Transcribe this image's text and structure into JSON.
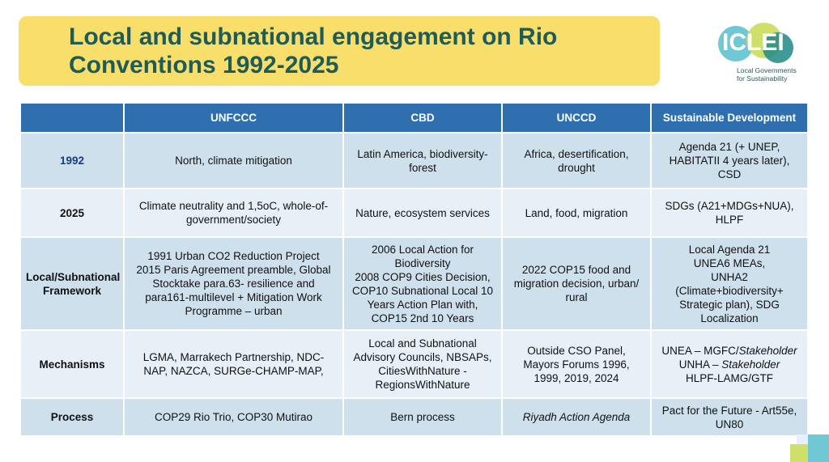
{
  "title": {
    "line1": "Local and subnational engagement on Rio",
    "line2": "Conventions 1992-2025"
  },
  "logo": {
    "word": "ICLEI",
    "sub_line1": "Local Governments",
    "sub_line2": "for Sustainability",
    "colors": {
      "teal": "#1e8a86",
      "aqua": "#6fc8d4",
      "lime": "#cfe06a"
    }
  },
  "colors": {
    "title_bg": "#f8de6b",
    "title_text": "#1f5c58",
    "header_bg": "#2f6fb0",
    "row_dark": "#cfe0ed",
    "row_light": "#e7f0f7"
  },
  "table": {
    "headers": [
      "",
      "UNFCCC",
      "CBD",
      "UNCCD",
      "Sustainable Development"
    ],
    "rows": [
      {
        "label": "1992",
        "cells": [
          [
            "North, climate mitigation"
          ],
          [
            "Latin America, biodiversity-",
            "forest"
          ],
          [
            "Africa, desertification,",
            "drought"
          ],
          [
            "Agenda 21 (+ UNEP,",
            "HABITATII 4 years later), CSD"
          ]
        ]
      },
      {
        "label": "2025",
        "cells": [
          [
            "Climate neutrality and 1,5oC, whole-of-",
            "government/society"
          ],
          [
            "Nature, ecosystem services"
          ],
          [
            "Land, food, migration"
          ],
          [
            "SDGs (A21+MDGs+NUA),",
            "HLPF"
          ]
        ]
      },
      {
        "label_line1": "Local/Subnational",
        "label_line2": "Framework",
        "cells": [
          [
            "1991 Urban CO2 Reduction Project",
            "2015 Paris Agreement preamble, Global",
            "Stocktake para.63- resilience and",
            "para161-multilevel + Mitigation Work",
            "Programme – urban"
          ],
          [
            "2006 Local Action for",
            "Biodiversity",
            "2008 COP9 Cities Decision,",
            "COP10 Subnational Local 10",
            "Years Action Plan with,",
            "COP15 2nd 10 Years"
          ],
          [
            "2022 COP15 food and",
            "migration decision, urban/",
            "rural"
          ],
          [
            "Local Agenda 21",
            "UNEA6 MEAs,",
            "UNHA2",
            "(Climate+biodiversity+",
            "Strategic plan), SDG",
            "Localization"
          ]
        ]
      },
      {
        "label": "Mechanisms",
        "cells": [
          [
            "LGMA, Marrakech Partnership, NDC-",
            "NAP, NAZCA, SURGe-CHAMP-MAP,"
          ],
          [
            "Local and Subnational",
            "Advisory Councils, NBSAPs,",
            "CitiesWithNature -",
            "RegionsWithNature"
          ],
          [
            "Outside CSO Panel,",
            "Mayors Forums 1996,",
            "1999, 2019, 2024"
          ],
          {
            "line1_plain": "UNEA – MGFC/",
            "line1_ital": "Stakeholder",
            "line2_plain": "UNHA – ",
            "line2_ital": "Stakeholder",
            "line3": "HLPF-LAMG/GTF"
          }
        ]
      },
      {
        "label": "Process",
        "cells": [
          [
            "COP29 Rio Trio, COP30 Mutirao"
          ],
          [
            "Bern process"
          ],
          [
            "Riyadh Action Agenda"
          ],
          [
            "Pact for the Future - Art55e,",
            "UN80"
          ]
        ]
      }
    ]
  }
}
